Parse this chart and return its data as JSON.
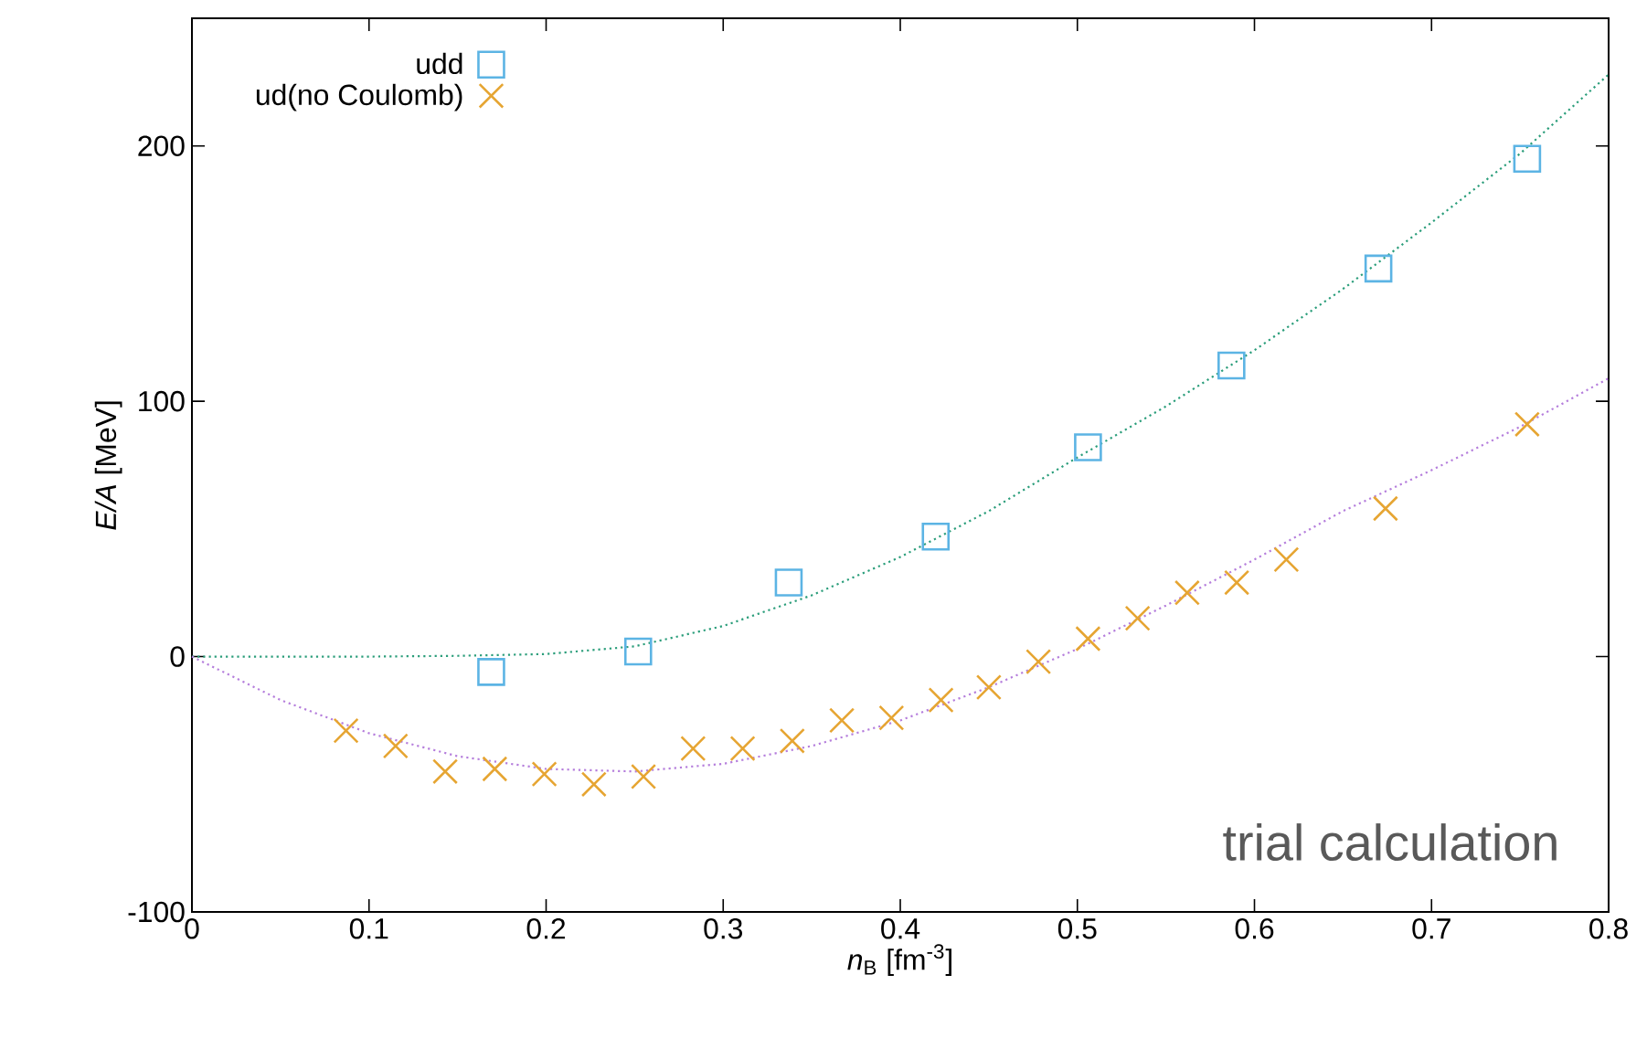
{
  "chart_data": {
    "type": "scatter",
    "xlabel": "*n*$_{B}$ [fm$^{-3}$]",
    "ylabel": "*E/A* [MeV]",
    "xlim": [
      0,
      0.8
    ],
    "ylim": [
      -100,
      250
    ],
    "xticks": [
      0,
      0.1,
      0.2,
      0.3,
      0.4,
      0.5,
      0.6,
      0.7,
      0.8
    ],
    "yticks": [
      -100,
      0,
      100,
      200
    ],
    "legend": "top left",
    "grid": false,
    "annotations": [
      "trial calculation"
    ],
    "series": [
      {
        "name": "udd",
        "marker": "square",
        "color": "#5cb4e4",
        "x": [
          0.169,
          0.252,
          0.337,
          0.42,
          0.506,
          0.587,
          0.67,
          0.754
        ],
        "values": [
          -6,
          2,
          29,
          47,
          82,
          114,
          152,
          195
        ]
      },
      {
        "name": "ud(no Coulomb)",
        "marker": "cross",
        "color": "#e6a532",
        "x": [
          0.087,
          0.115,
          0.143,
          0.171,
          0.199,
          0.227,
          0.255,
          0.283,
          0.311,
          0.339,
          0.367,
          0.395,
          0.423,
          0.45,
          0.478,
          0.506,
          0.534,
          0.562,
          0.59,
          0.618,
          0.674,
          0.754
        ],
        "values": [
          -29,
          -35,
          -45,
          -44,
          -46,
          -50,
          -47,
          -36,
          -36,
          -33,
          -25,
          -24,
          -17,
          -12,
          -2,
          7,
          15,
          25,
          29,
          38,
          58,
          91
        ]
      },
      {
        "type": "line",
        "marker": "none",
        "line_style": "dotted",
        "color": "#2a9d7a",
        "x": [
          0,
          0.1,
          0.15,
          0.2,
          0.25,
          0.3,
          0.35,
          0.4,
          0.45,
          0.5,
          0.55,
          0.6,
          0.65,
          0.7,
          0.75,
          0.8
        ],
        "values": [
          0,
          0,
          0.3,
          1,
          4,
          12,
          24,
          39,
          57,
          78,
          98,
          120,
          144,
          170,
          197,
          228
        ]
      },
      {
        "type": "line",
        "marker": "none",
        "line_style": "dotted",
        "color": "#b57edc",
        "x": [
          0,
          0.05,
          0.1,
          0.15,
          0.2,
          0.25,
          0.3,
          0.35,
          0.4,
          0.45,
          0.5,
          0.55,
          0.6,
          0.65,
          0.7,
          0.75,
          0.8
        ],
        "values": [
          0,
          -17,
          -30,
          -39,
          -44,
          -45,
          -42,
          -35,
          -25,
          -12,
          3,
          20,
          38,
          57,
          73,
          90,
          109
        ]
      }
    ]
  }
}
